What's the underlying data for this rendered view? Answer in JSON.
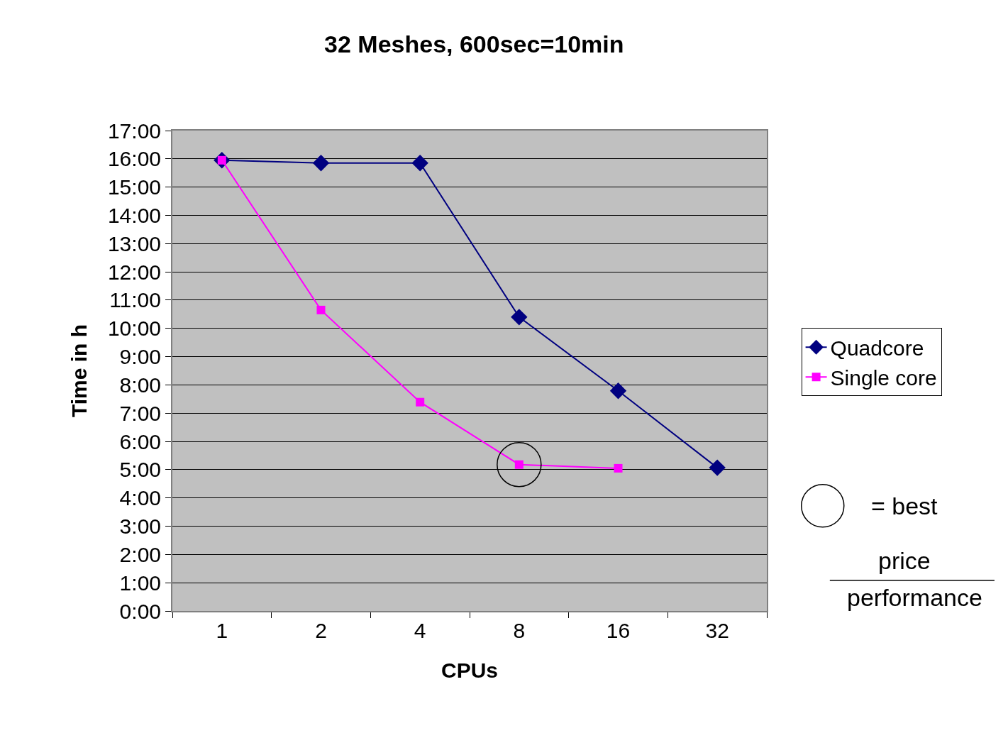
{
  "chart_data": {
    "type": "line",
    "title": "32 Meshes, 600sec=10min",
    "xlabel": "CPUs",
    "ylabel": "Time in h",
    "categories": [
      "1",
      "2",
      "4",
      "8",
      "16",
      "32"
    ],
    "series": [
      {
        "name": "Quadcore",
        "color": "#000080",
        "marker": "diamond",
        "values": [
          15.95,
          15.85,
          15.85,
          10.4,
          7.79,
          5.07
        ]
      },
      {
        "name": "Single core",
        "color": "#ff00ff",
        "marker": "square",
        "values": [
          15.95,
          10.65,
          7.39,
          5.18,
          5.05,
          null
        ]
      }
    ],
    "ylim": [
      0,
      17
    ],
    "yticks": [
      {
        "value": 0,
        "label": "0:00"
      },
      {
        "value": 1,
        "label": "1:00"
      },
      {
        "value": 2,
        "label": "2:00"
      },
      {
        "value": 3,
        "label": "3:00"
      },
      {
        "value": 4,
        "label": "4:00"
      },
      {
        "value": 5,
        "label": "5:00"
      },
      {
        "value": 6,
        "label": "6:00"
      },
      {
        "value": 7,
        "label": "7:00"
      },
      {
        "value": 8,
        "label": "8:00"
      },
      {
        "value": 9,
        "label": "9:00"
      },
      {
        "value": 10,
        "label": "10:00"
      },
      {
        "value": 11,
        "label": "11:00"
      },
      {
        "value": 12,
        "label": "12:00"
      },
      {
        "value": 13,
        "label": "13:00"
      },
      {
        "value": 14,
        "label": "14:00"
      },
      {
        "value": 15,
        "label": "15:00"
      },
      {
        "value": 16,
        "label": "16:00"
      },
      {
        "value": 17,
        "label": "17:00"
      }
    ],
    "grid": "y",
    "legend": "right",
    "annotations": [
      "= best",
      "price",
      "performance"
    ]
  }
}
